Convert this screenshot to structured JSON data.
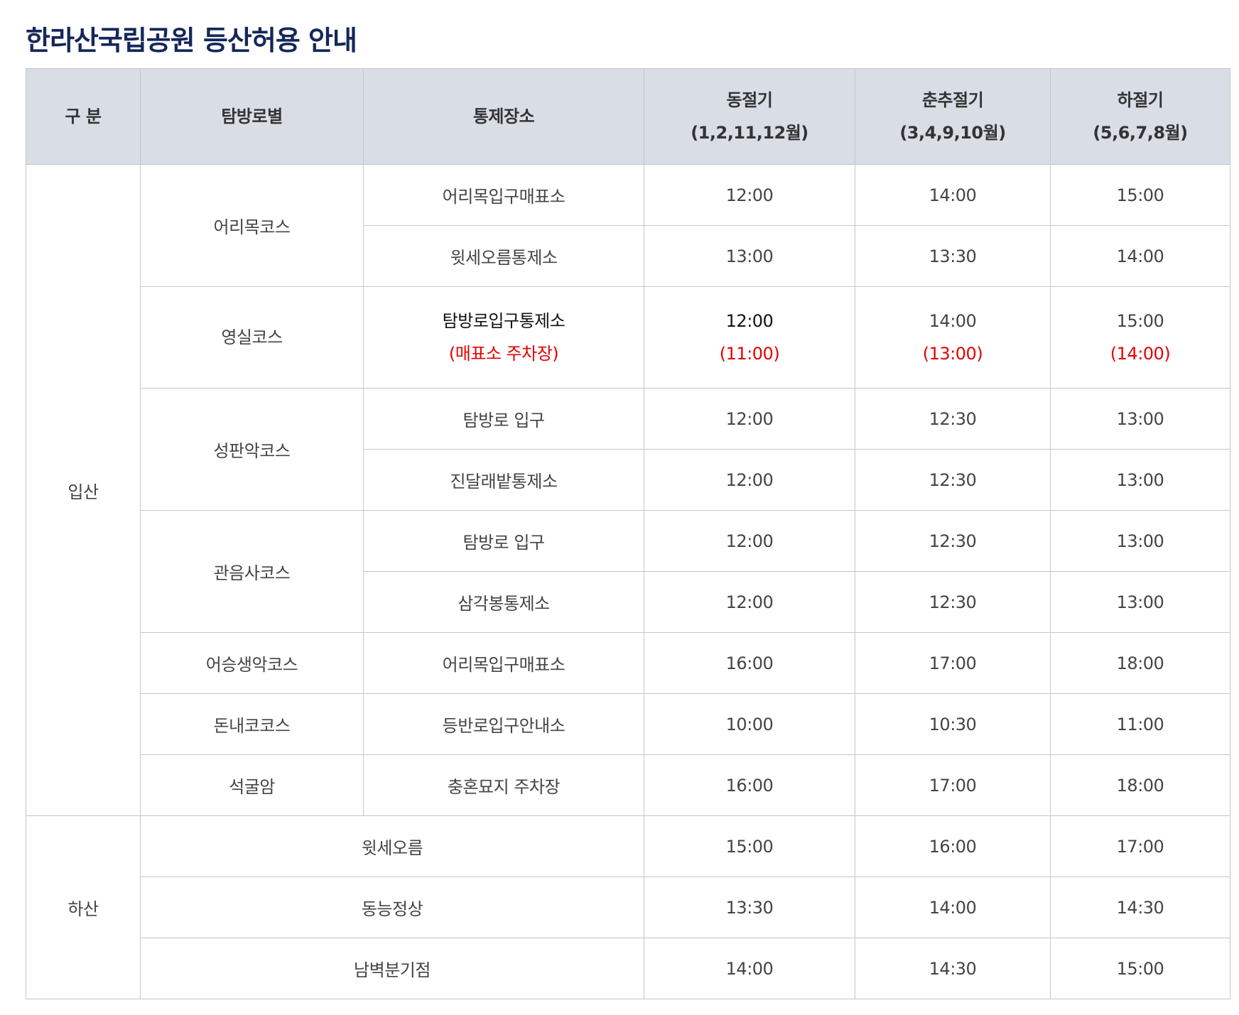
{
  "title": "한라산국립공원 등산허용 안내",
  "table": {
    "header": {
      "group": "구 분",
      "course": "탐방로별",
      "place": "통제장소",
      "seasons": [
        {
          "name": "동절기",
          "months": "(1,2,11,12월)"
        },
        {
          "name": "춘추절기",
          "months": "(3,4,9,10월)"
        },
        {
          "name": "하절기",
          "months": "(5,6,7,8월)"
        }
      ]
    },
    "ipsan": {
      "label": "입산",
      "courses": [
        {
          "name": "어리목코스",
          "places": [
            {
              "name": "어리목입구매표소",
              "times": [
                "12:00",
                "14:00",
                "15:00"
              ]
            },
            {
              "name": "윗세오름통제소",
              "times": [
                "13:00",
                "13:30",
                "14:00"
              ]
            }
          ]
        },
        {
          "name": "영실코스",
          "places": [
            {
              "name": "탐방로입구통제소",
              "note": "(매표소 주차장)",
              "times": [
                "12:00",
                "14:00",
                "15:00"
              ],
              "time_notes": [
                "(11:00)",
                "(13:00)",
                "(14:00)"
              ]
            }
          ]
        },
        {
          "name": "성판악코스",
          "places": [
            {
              "name": "탐방로 입구",
              "times": [
                "12:00",
                "12:30",
                "13:00"
              ]
            },
            {
              "name": "진달래밭통제소",
              "times": [
                "12:00",
                "12:30",
                "13:00"
              ]
            }
          ]
        },
        {
          "name": "관음사코스",
          "places": [
            {
              "name": "탐방로 입구",
              "times": [
                "12:00",
                "12:30",
                "13:00"
              ]
            },
            {
              "name": "삼각봉통제소",
              "times": [
                "12:00",
                "12:30",
                "13:00"
              ]
            }
          ]
        },
        {
          "name": "어승생악코스",
          "places": [
            {
              "name": "어리목입구매표소",
              "times": [
                "16:00",
                "17:00",
                "18:00"
              ]
            }
          ]
        },
        {
          "name": "돈내코코스",
          "places": [
            {
              "name": "등반로입구안내소",
              "times": [
                "10:00",
                "10:30",
                "11:00"
              ]
            }
          ]
        },
        {
          "name": "석굴암",
          "places": [
            {
              "name": "충혼묘지 주차장",
              "times": [
                "16:00",
                "17:00",
                "18:00"
              ]
            }
          ]
        }
      ]
    },
    "hasan": {
      "label": "하산",
      "places": [
        {
          "name": "윗세오름",
          "times": [
            "15:00",
            "16:00",
            "17:00"
          ]
        },
        {
          "name": "동능정상",
          "times": [
            "13:30",
            "14:00",
            "14:30"
          ]
        },
        {
          "name": "남벽분기점",
          "times": [
            "14:00",
            "14:30",
            "15:00"
          ]
        }
      ]
    }
  }
}
